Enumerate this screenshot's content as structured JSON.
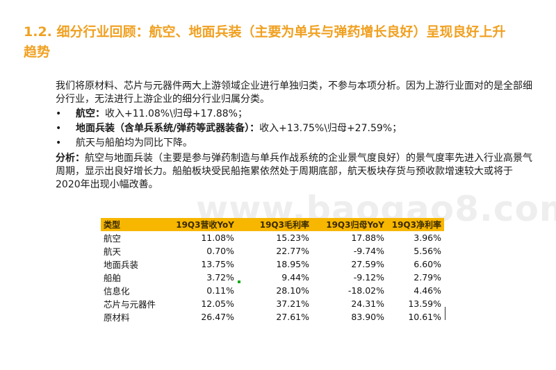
{
  "title": "1.2. 细分行业回顾：航空、地面兵装（主要为单兵与弹药增长良好）呈现良好上升趋势",
  "intro": "我们将原材料、芯片与元器件两大上游领域企业进行单独归类，不参与本项分析。因为上游行业面对的是全部细分行业，无法进行上游企业的细分行业归属分类。",
  "bullets": [
    {
      "bold": "航空：",
      "text": "收入+11.08%\\归母+17.88%；"
    },
    {
      "bold": "地面兵装（含单兵系统/弹药等武器装备）：",
      "text": "收入+13.75%\\归母+27.59%；"
    },
    {
      "bold": "",
      "text": "航天与船舶均为同比下降。"
    }
  ],
  "analysis": {
    "label": "分析：",
    "text": "航空与地面兵装（主要是参与弹药制造与单兵作战系统的企业景气度良好）的景气度率先进入行业高景气周期，显示出良好增长力。船舶板块受民船拖累依然处于周期底部，航天板块存货与预收款增速较大或将于2020年出现小幅改善。"
  },
  "watermark": "www.baogao8.com",
  "table": {
    "headers": [
      "类型",
      "19Q3营收YoY",
      "19Q3毛利率",
      "19Q3归母YoY",
      "19Q3净利率"
    ],
    "rows": [
      [
        "航空",
        "11.08%",
        "15.23%",
        "17.88%",
        "3.96%"
      ],
      [
        "航天",
        "0.70%",
        "22.77%",
        "-9.74%",
        "5.56%"
      ],
      [
        "地面兵装",
        "13.75%",
        "18.95%",
        "27.59%",
        "6.60%"
      ],
      [
        "船舶",
        "3.72%",
        "9.44%",
        "-9.12%",
        "2.79%"
      ],
      [
        "信息化",
        "0.11%",
        "28.10%",
        "-18.02%",
        "4.46%"
      ],
      [
        "芯片与元器件",
        "12.05%",
        "37.21%",
        "24.31%",
        "13.59%"
      ],
      [
        "原材料",
        "26.47%",
        "27.61%",
        "83.90%",
        "10.61%"
      ]
    ]
  },
  "colors": {
    "title": "#f0a020",
    "table_header": "#f7b600"
  }
}
